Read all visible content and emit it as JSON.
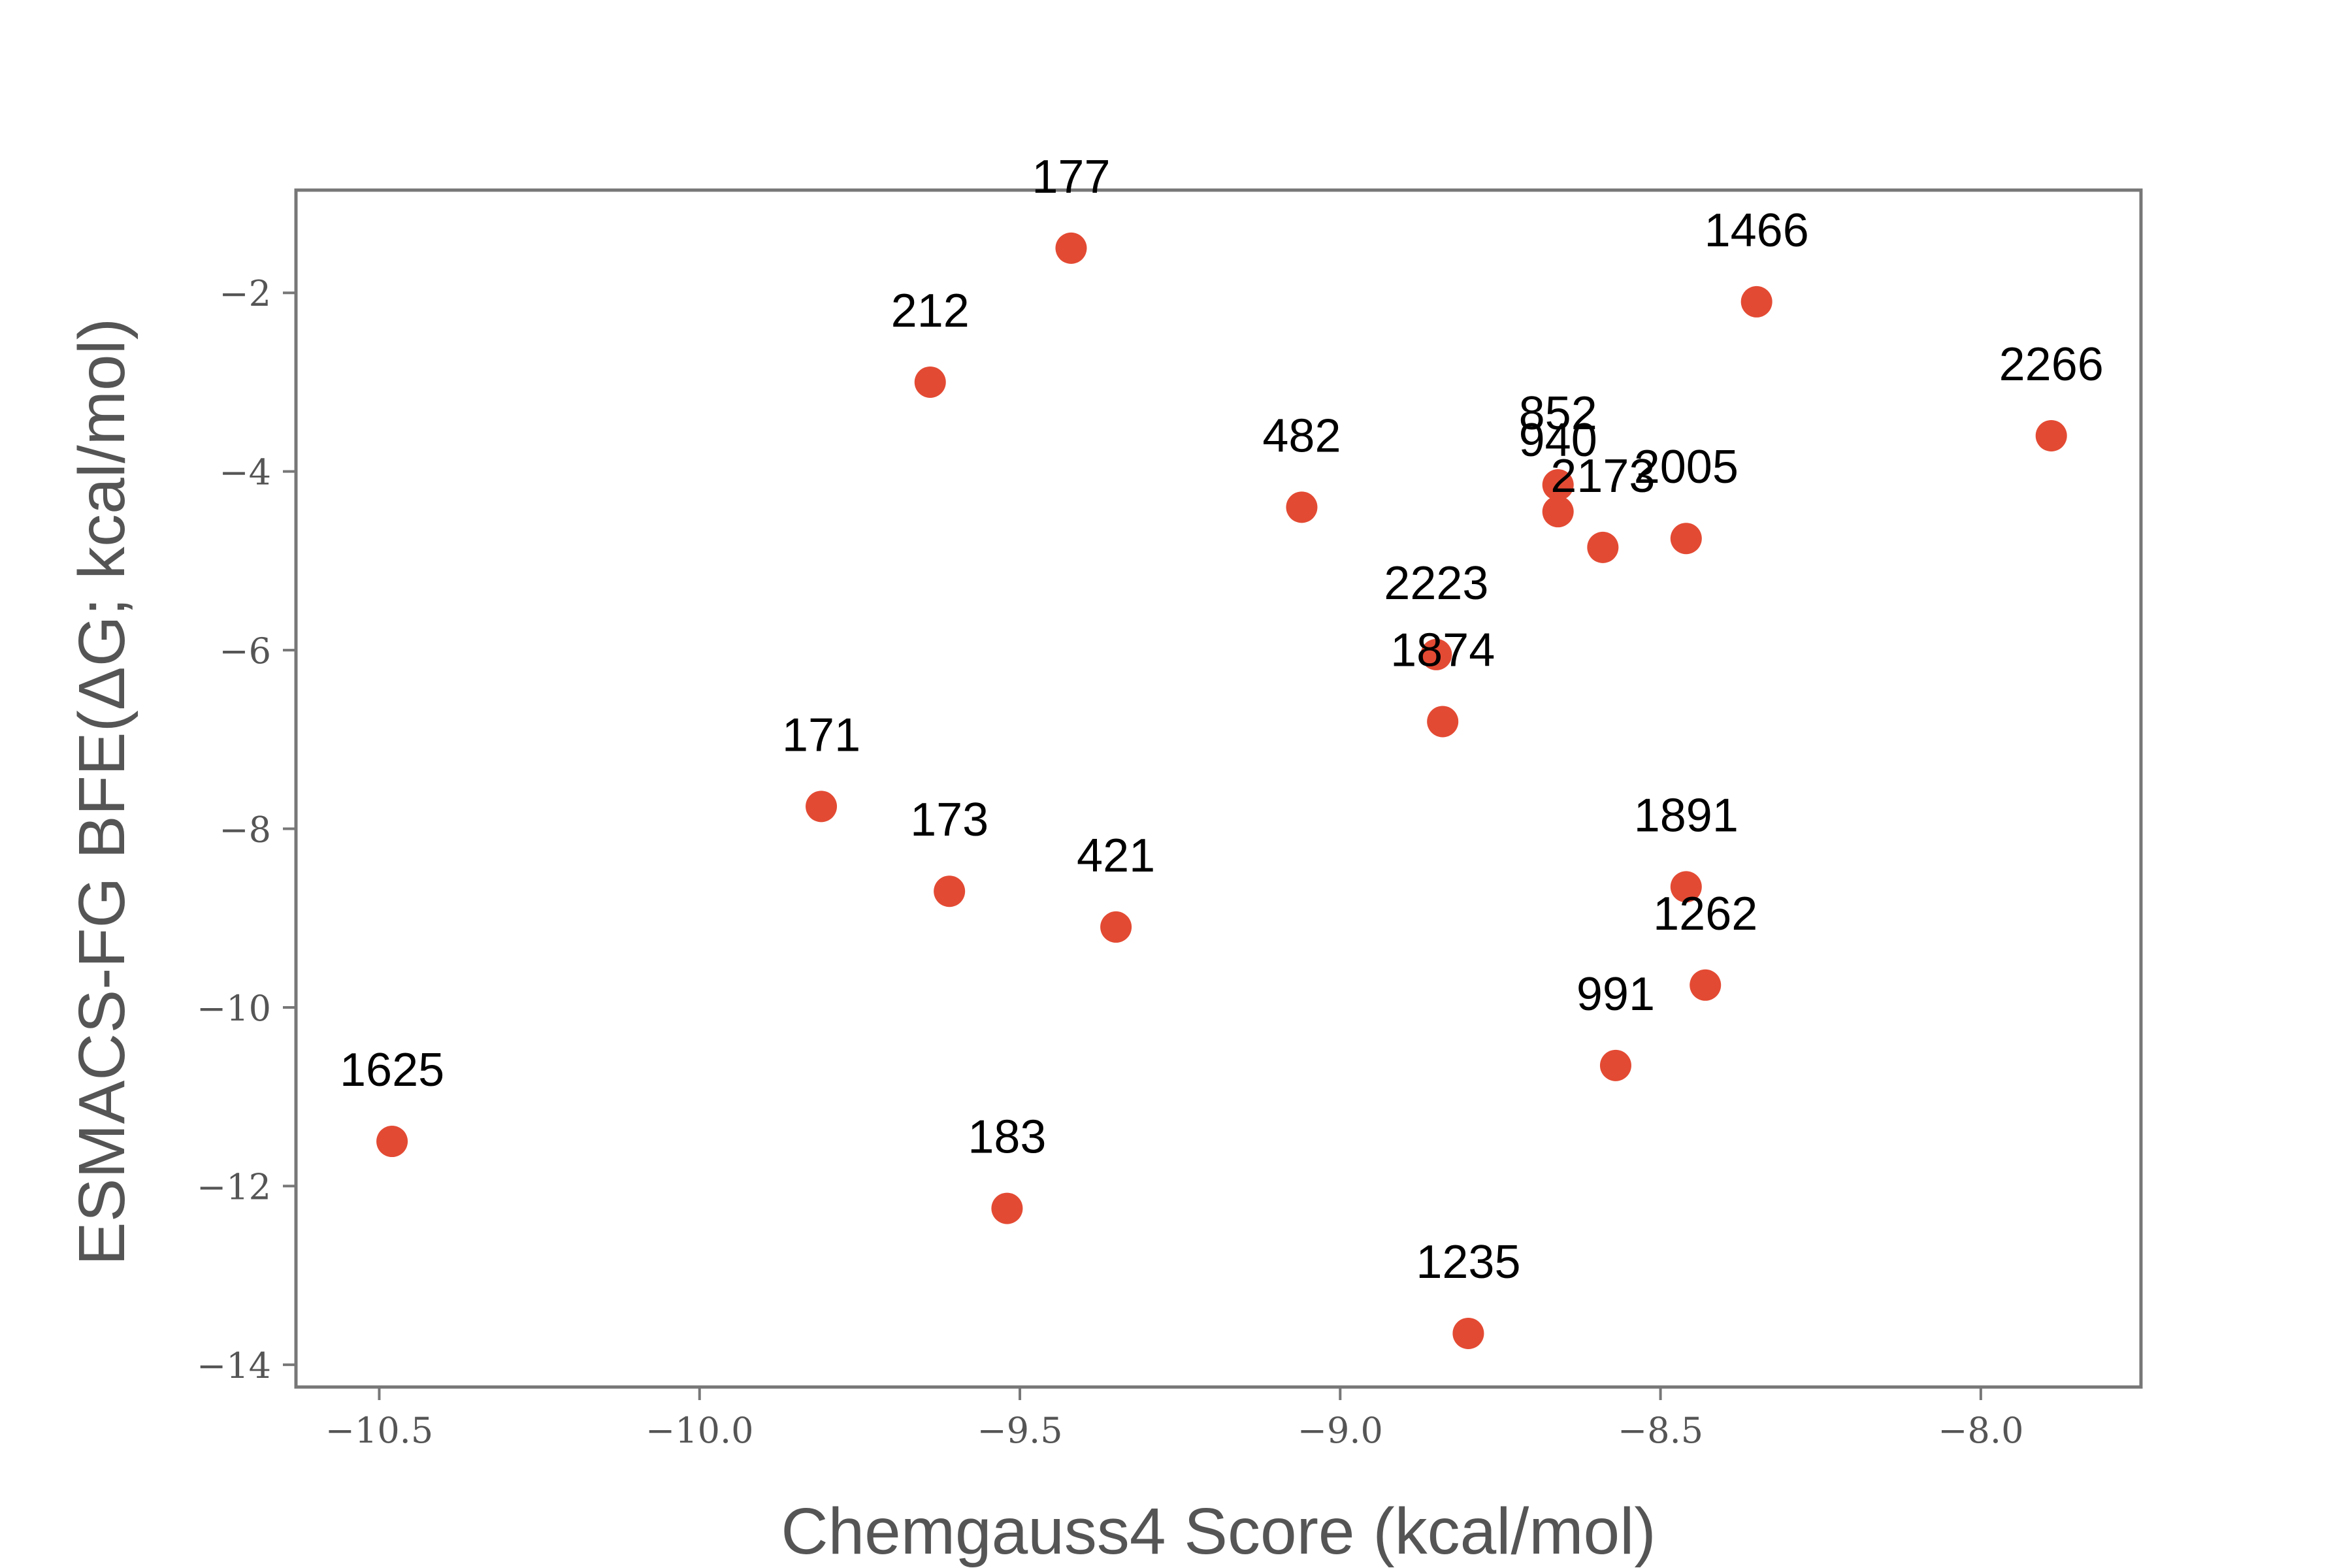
{
  "chart_data": {
    "type": "scatter",
    "title": "",
    "xlabel": "Chemgauss4 Score (kcal/mol)",
    "ylabel": "ESMACS-FG BFE(ΔG; kcal/mol)",
    "xlim": [
      -10.63,
      -7.75
    ],
    "ylim": [
      -14.25,
      -0.85
    ],
    "xticks": [
      -10.5,
      -10.0,
      -9.5,
      -9.0,
      -8.5,
      -8.0
    ],
    "xtick_labels": [
      "−10.5",
      "−10.0",
      "−9.5",
      "−9.0",
      "−8.5",
      "−8.0"
    ],
    "yticks": [
      -2,
      -4,
      -6,
      -8,
      -10,
      -12,
      -14
    ],
    "ytick_labels": [
      "−2",
      "−4",
      "−6",
      "−8",
      "−10",
      "−12",
      "−14"
    ],
    "grid": false,
    "legend": "none",
    "marker_color": "#E34A33",
    "frame_color": "#777777",
    "points": [
      {
        "label": "177",
        "x": -9.42,
        "y": -1.5
      },
      {
        "label": "1466",
        "x": -8.35,
        "y": -2.1
      },
      {
        "label": "212",
        "x": -9.64,
        "y": -3.0
      },
      {
        "label": "2266",
        "x": -7.89,
        "y": -3.6
      },
      {
        "label": "482",
        "x": -9.06,
        "y": -4.4
      },
      {
        "label": "852",
        "x": -8.66,
        "y": -4.15
      },
      {
        "label": "940",
        "x": -8.66,
        "y": -4.45
      },
      {
        "label": "2173",
        "x": -8.59,
        "y": -4.85
      },
      {
        "label": "2005",
        "x": -8.46,
        "y": -4.75
      },
      {
        "label": "2223",
        "x": -8.85,
        "y": -6.05
      },
      {
        "label": "1874",
        "x": -8.84,
        "y": -6.8
      },
      {
        "label": "171",
        "x": -9.81,
        "y": -7.75
      },
      {
        "label": "173",
        "x": -9.61,
        "y": -8.7
      },
      {
        "label": "421",
        "x": -9.35,
        "y": -9.1
      },
      {
        "label": "1891",
        "x": -8.46,
        "y": -8.65
      },
      {
        "label": "1262",
        "x": -8.43,
        "y": -9.75
      },
      {
        "label": "991",
        "x": -8.57,
        "y": -10.65
      },
      {
        "label": "1625",
        "x": -10.48,
        "y": -11.5
      },
      {
        "label": "183",
        "x": -9.52,
        "y": -12.25
      },
      {
        "label": "1235",
        "x": -8.8,
        "y": -13.65
      }
    ]
  }
}
